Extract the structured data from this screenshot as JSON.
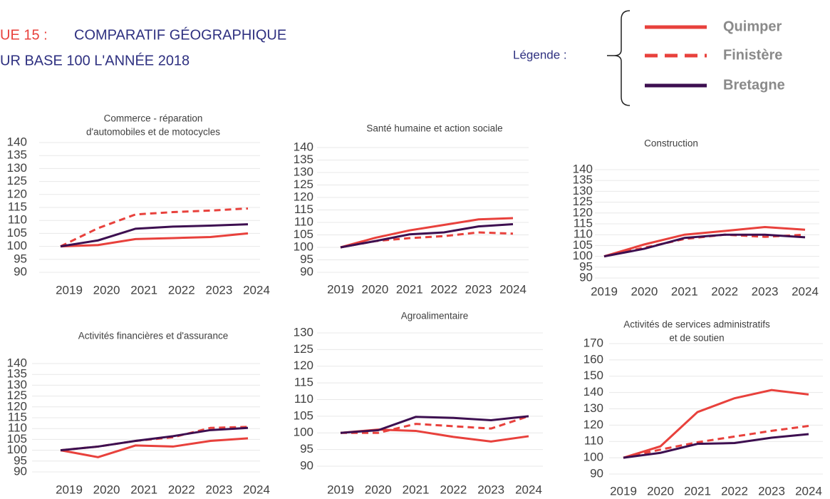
{
  "header": {
    "title_red": "UE 15 :",
    "title": "COMPARATIF GÉOGRAPHIQUE",
    "subtitle": "UR BASE 100 L'ANNÉE 2018"
  },
  "legend": {
    "label": "Légende :",
    "items": [
      {
        "name": "Quimper",
        "color": "#e8413c",
        "dash": false
      },
      {
        "name": "Finistère",
        "color": "#e8413c",
        "dash": true
      },
      {
        "name": "Bretagne",
        "color": "#3d0f50",
        "dash": false
      }
    ]
  },
  "chart_data": [
    {
      "type": "line",
      "title": [
        "Commerce - réparation",
        "d'automobiles et de motocycles"
      ],
      "categories": [
        "2019",
        "2020",
        "2021",
        "2022",
        "2023",
        "2024"
      ],
      "series": [
        {
          "values": [
            100,
            100.5,
            102.8,
            103.2,
            103.6,
            105
          ]
        },
        {
          "values": [
            100,
            107,
            112.3,
            113.2,
            113.8,
            114.6
          ]
        },
        {
          "values": [
            100,
            102.3,
            106.8,
            107.6,
            108,
            108.5
          ]
        }
      ],
      "ylim": [
        90,
        140
      ],
      "yticks": [
        90,
        95,
        100,
        105,
        110,
        115,
        120,
        125,
        130,
        135,
        140
      ],
      "grid": true
    },
    {
      "type": "line",
      "title": [
        "Santé humaine et action sociale"
      ],
      "categories": [
        "2019",
        "2020",
        "2021",
        "2022",
        "2023",
        "2024"
      ],
      "series": [
        {
          "values": [
            100,
            103.8,
            106.8,
            109,
            111.2,
            111.7
          ]
        },
        {
          "values": [
            100,
            102.5,
            103.7,
            104.5,
            106,
            105.5
          ]
        },
        {
          "values": [
            100,
            102.5,
            105.2,
            106,
            108.4,
            109.3
          ]
        }
      ],
      "ylim": [
        90,
        140
      ],
      "yticks": [
        90,
        95,
        100,
        105,
        110,
        115,
        120,
        125,
        130,
        135,
        140
      ],
      "grid": true
    },
    {
      "type": "line",
      "title": [
        "Construction"
      ],
      "categories": [
        "2019",
        "2020",
        "2021",
        "2022",
        "2023",
        "2024"
      ],
      "series": [
        {
          "values": [
            100,
            105.5,
            110,
            111.7,
            113.5,
            112.3
          ]
        },
        {
          "values": [
            100,
            104,
            108,
            110,
            109,
            110
          ]
        },
        {
          "values": [
            100,
            103.5,
            108.5,
            110,
            110,
            108.8
          ]
        }
      ],
      "ylim": [
        90,
        140
      ],
      "yticks": [
        90,
        95,
        100,
        105,
        110,
        115,
        120,
        125,
        130,
        135,
        140
      ],
      "grid": true
    },
    {
      "type": "line",
      "title": [
        "Activités financières et d'assurance"
      ],
      "categories": [
        "2019",
        "2020",
        "2021",
        "2022",
        "2023",
        "2024"
      ],
      "series": [
        {
          "values": [
            100,
            96.8,
            102.2,
            101.7,
            104.3,
            105.5
          ]
        },
        {
          "values": [
            100,
            101.7,
            104.3,
            106,
            110.3,
            110.8
          ]
        },
        {
          "values": [
            100,
            101.7,
            104.3,
            106.5,
            109.3,
            110.3
          ]
        }
      ],
      "ylim": [
        90,
        140
      ],
      "yticks": [
        90,
        95,
        100,
        105,
        110,
        115,
        120,
        125,
        130,
        135,
        140
      ],
      "grid": true
    },
    {
      "type": "line",
      "title": [
        "Agroalimentaire"
      ],
      "categories": [
        "2019",
        "2020",
        "2021",
        "2022",
        "2023",
        "2024"
      ],
      "series": [
        {
          "values": [
            100,
            101,
            100.6,
            98.8,
            97.4,
            99
          ]
        },
        {
          "values": [
            100,
            100,
            102.7,
            102,
            101.3,
            105
          ]
        },
        {
          "values": [
            100,
            100.8,
            104.8,
            104.5,
            103.8,
            105
          ]
        }
      ],
      "ylim": [
        90,
        130
      ],
      "yticks": [
        90,
        95,
        100,
        105,
        110,
        115,
        120,
        125,
        130
      ],
      "grid": true
    },
    {
      "type": "line",
      "title": [
        "Activités de services administratifs",
        "et de soutien"
      ],
      "categories": [
        "2019",
        "2020",
        "2021",
        "2022",
        "2023",
        "2024"
      ],
      "series": [
        {
          "values": [
            100,
            107,
            128,
            136.5,
            141.5,
            138.8
          ]
        },
        {
          "values": [
            100,
            105,
            109.5,
            113,
            116.5,
            119.5
          ]
        },
        {
          "values": [
            100,
            103,
            108.5,
            109,
            112.3,
            114.5
          ]
        }
      ],
      "ylim": [
        90,
        170
      ],
      "yticks": [
        90,
        100,
        110,
        120,
        130,
        140,
        150,
        160,
        170
      ],
      "grid": true
    }
  ]
}
